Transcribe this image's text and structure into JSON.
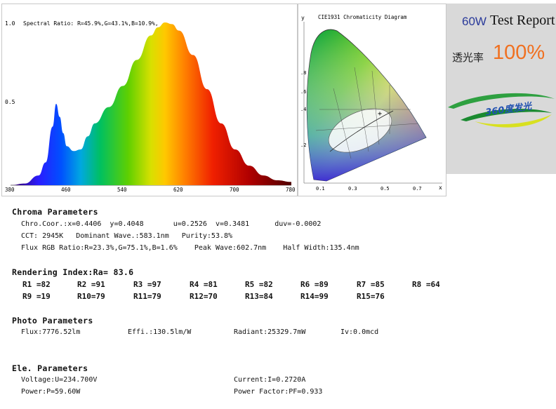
{
  "spectrum": {
    "title": "Spectral Ratio:  R=45.9%,G=43.1%,B=10.9%,",
    "y_ticks": [
      "1.0",
      "0.5"
    ],
    "x_ticks": [
      "380",
      "460",
      "540",
      "620",
      "700",
      "780"
    ]
  },
  "cie": {
    "title": "CIE1931 Chromaticity Diagram",
    "y_axis": "y",
    "x_axis": "x",
    "y_ticks": [
      ".8",
      ".6",
      ".4",
      ".2"
    ],
    "x_ticks": [
      "0.1",
      "0.3",
      "0.5",
      "0.7"
    ]
  },
  "report": {
    "power": "60W",
    "title": "Test Report",
    "trans_label": "透光率",
    "trans_value": "100%",
    "logo_text": "360度发光"
  },
  "chroma": {
    "title": "Chroma Parameters",
    "line1": "Chro.Coor.:x=0.4406  y=0.4048       u=0.2526  v=0.3481      duv=-0.0002",
    "line2": "CCT: 2945K   Dominant Wave.:583.1nm   Purity:53.8%",
    "line3": "Flux RGB Ratio:R=23.3%,G=75.1%,B=1.6%    Peak Wave:602.7nm    Half Width:135.4nm"
  },
  "rendering": {
    "title": "Rendering Index:Ra= 83.6",
    "row1": [
      "R1 =82",
      "R2 =91",
      "R3 =97",
      "R4 =81",
      "R5 =82",
      "R6 =89",
      "R7 =85",
      "R8 =64"
    ],
    "row2": [
      "R9 =19",
      "R10=79",
      "R11=79",
      "R12=70",
      "R13=84",
      "R14=99",
      "R15=76"
    ]
  },
  "photo": {
    "title": "Photo Parameters",
    "flux": "Flux:7776.52lm",
    "effi": "Effi.:130.5lm/W",
    "radiant": "Radiant:25329.7mW",
    "iv": "Iv:0.0mcd"
  },
  "ele": {
    "title": "Ele. Parameters",
    "voltage": "Voltage:U=234.700V",
    "current": "Current:I=0.2720A",
    "power": "Power:P=59.60W",
    "pf": "Power Factor:PF=0.933"
  },
  "chart_data": {
    "type": "area",
    "title": "Spectral Ratio:  R=45.9%,G=43.1%,B=10.9%,",
    "xlabel": "",
    "ylabel": "",
    "xlim": [
      380,
      780
    ],
    "ylim": [
      0,
      1.0
    ],
    "x_ticks": [
      380,
      460,
      540,
      620,
      700,
      780
    ],
    "y_ticks": [
      1.0,
      0.5
    ],
    "x": [
      380,
      400,
      420,
      430,
      440,
      445,
      450,
      455,
      460,
      470,
      480,
      490,
      500,
      520,
      540,
      560,
      580,
      590,
      600,
      610,
      620,
      640,
      660,
      680,
      700,
      720,
      740,
      760,
      780
    ],
    "values": [
      0.0,
      0.01,
      0.06,
      0.14,
      0.36,
      0.5,
      0.42,
      0.32,
      0.24,
      0.21,
      0.22,
      0.3,
      0.38,
      0.48,
      0.61,
      0.77,
      0.92,
      0.97,
      1.0,
      0.99,
      0.95,
      0.8,
      0.59,
      0.38,
      0.22,
      0.12,
      0.06,
      0.03,
      0.02
    ]
  }
}
